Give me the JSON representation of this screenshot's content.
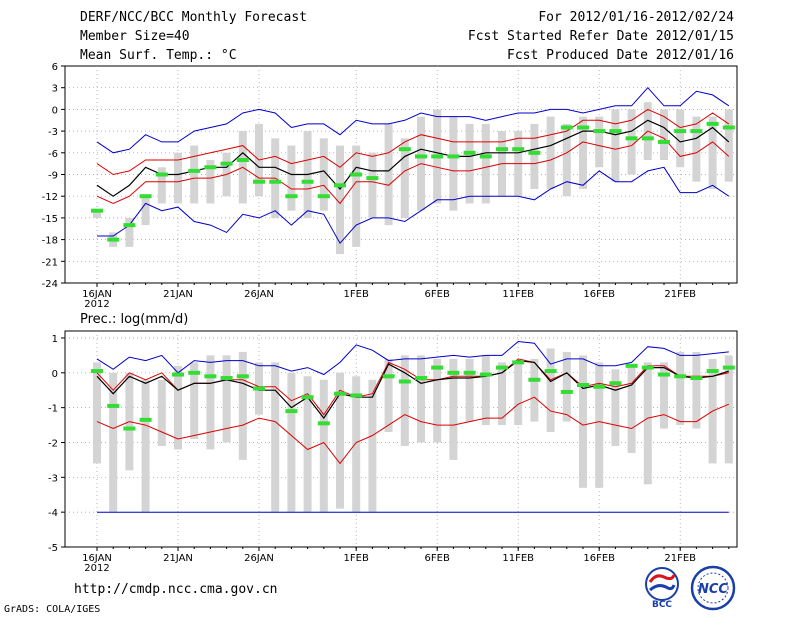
{
  "header": {
    "title": "DERF/NCC/BCC Monthly Forecast",
    "member_size": "Member Size=40",
    "variable": "Mean Surf. Temp.: °C",
    "forecast_period": "For 2012/01/16-2012/02/24",
    "started_refer_date": "Fcst Started Refer Date 2012/01/15",
    "produced_date": "Fcst Produced Date 2012/01/16"
  },
  "footer": {
    "url": "http://cmdp.ncc.cma.gov.cn",
    "grads_credit": "GrADS: COLA/IGES",
    "logo_bcc": "BCC",
    "logo_ncc": "NCC"
  },
  "colors": {
    "max_line": "#0000cc",
    "p90_line": "#dd0000",
    "mean_line": "#000000",
    "bar": "#d4d4d4",
    "obs": "#33dd33",
    "grid": "#999999"
  },
  "chart_data": [
    {
      "type": "line",
      "id": "temperature",
      "title": "",
      "ylabel": "°C",
      "ylim": [
        -24,
        6
      ],
      "yticks": [
        6,
        3,
        0,
        -3,
        -6,
        -9,
        -12,
        -15,
        -18,
        -21,
        -24
      ],
      "x_tick_labels": [
        {
          "day": 0,
          "label": "16JAN"
        },
        {
          "day": 5,
          "label": "21JAN"
        },
        {
          "day": 10,
          "label": "26JAN"
        },
        {
          "day": 16,
          "label": "1FEB"
        },
        {
          "day": 21,
          "label": "6FEB"
        },
        {
          "day": 26,
          "label": "11FEB"
        },
        {
          "day": 31,
          "label": "16FEB"
        },
        {
          "day": 36,
          "label": "21FEB"
        }
      ],
      "year_label": "2012",
      "days": 40,
      "bar_top": [
        -14,
        -17,
        -15,
        -12,
        -8,
        -6,
        -5,
        -7,
        -6,
        -3,
        -2,
        -4,
        -5,
        -3,
        -4,
        -5,
        -5,
        -6,
        -2,
        -4,
        -1,
        0,
        -1,
        -2,
        -2,
        -3,
        -3,
        -2,
        -1,
        -2,
        -1,
        -1,
        0,
        0,
        1,
        0,
        0,
        -1,
        -1,
        0
      ],
      "bar_bottom": [
        -15,
        -19,
        -19,
        -16,
        -13,
        -13,
        -13,
        -13,
        -12,
        -13,
        -12,
        -15,
        -14,
        -15,
        -14,
        -20,
        -19,
        -15,
        -16,
        -15,
        -14,
        -13,
        -14,
        -13,
        -13,
        -12,
        -12,
        -11,
        -11,
        -12,
        -11,
        -8,
        -10,
        -9,
        -7,
        -7,
        -8,
        -10,
        -11,
        -10
      ],
      "observed": [
        -14,
        -18,
        -16,
        -12,
        -9,
        null,
        -8.5,
        -8,
        -7.5,
        -7,
        -10,
        -10,
        -12,
        -10,
        -12,
        -10.5,
        -9,
        -9.5,
        null,
        -5.5,
        -6.5,
        -6.5,
        -6.5,
        -6,
        -6.5,
        -5.5,
        -5.5,
        -6,
        null,
        -2.5,
        -2.5,
        -3,
        -3,
        -4,
        -4,
        -4.5,
        -3,
        -3,
        -2,
        -2.5
      ],
      "series": [
        {
          "name": "max",
          "color": "#0000cc",
          "values": [
            -4.5,
            -6,
            -5.5,
            -3.5,
            -4.5,
            -4.5,
            -3,
            -2.5,
            -2,
            -0.5,
            0,
            -0.5,
            -2.5,
            -2,
            -2,
            -3.5,
            -1.5,
            -2,
            -2,
            -1.5,
            -0.5,
            -1,
            -1,
            -1,
            -1.5,
            -1,
            -0.5,
            -0.5,
            0,
            0,
            -0.5,
            0,
            0.5,
            0.5,
            3,
            0.5,
            0.5,
            2.5,
            2,
            0.5
          ]
        },
        {
          "name": "p90",
          "color": "#dd0000",
          "values": [
            -7.5,
            -9,
            -8.5,
            -7,
            -7,
            -7,
            -6.5,
            -6,
            -5.5,
            -5,
            -7,
            -6.5,
            -7.5,
            -7,
            -6.5,
            -8,
            -6,
            -6.5,
            -6,
            -4.5,
            -3.5,
            -4,
            -4.5,
            -4.5,
            -4.5,
            -4.5,
            -4,
            -4,
            -3.5,
            -3,
            -1.5,
            -1.5,
            -2,
            -1.5,
            0,
            -1,
            -2.5,
            -2,
            -0.5,
            -2
          ]
        },
        {
          "name": "mean",
          "color": "#000000",
          "values": [
            -10.5,
            -12,
            -10.5,
            -8,
            -9,
            -9,
            -8.5,
            -8,
            -8,
            -6,
            -8,
            -8,
            -9,
            -9,
            -8.5,
            -11,
            -8,
            -8.5,
            -8.5,
            -6.5,
            -5.5,
            -6,
            -6.5,
            -6.5,
            -6,
            -6,
            -6,
            -5.5,
            -5,
            -4,
            -3,
            -3,
            -3.5,
            -3,
            -1.5,
            -2.5,
            -4.5,
            -4,
            -2.5,
            -4.5
          ]
        },
        {
          "name": "p10",
          "color": "#dd0000",
          "values": [
            -12,
            -13,
            -12,
            -10,
            -10,
            -10,
            -9.5,
            -9.5,
            -9,
            -8,
            -9.5,
            -9.5,
            -11,
            -11,
            -10.5,
            -13,
            -10,
            -10,
            -10.5,
            -8.5,
            -7.5,
            -8,
            -8.5,
            -8.5,
            -8,
            -7.5,
            -7.5,
            -7.5,
            -7,
            -6,
            -4.5,
            -5,
            -5.5,
            -5,
            -3,
            -4,
            -6.5,
            -6,
            -4.5,
            -6.5
          ]
        },
        {
          "name": "min",
          "color": "#0000cc",
          "values": [
            -17.5,
            -17.5,
            -16,
            -13,
            -14,
            -13.5,
            -15.5,
            -16,
            -17,
            -14.5,
            -15,
            -14,
            -16,
            -14,
            -14.5,
            -18.5,
            -16,
            -15,
            -15,
            -15.5,
            -14,
            -12.5,
            -12.5,
            -12,
            -12,
            -12,
            -12,
            -12.5,
            -11,
            -10,
            -10.5,
            -8.5,
            -10,
            -10,
            -8.5,
            -8,
            -11.5,
            -11.5,
            -10.5,
            -12
          ]
        }
      ]
    },
    {
      "type": "line",
      "id": "precipitation",
      "title": "Prec.: log(mm/d)",
      "ylabel": "log(mm/d)",
      "ylim": [
        -5,
        1.2
      ],
      "yticks": [
        1,
        0,
        -1,
        -2,
        -3,
        -4,
        -5
      ],
      "x_tick_labels": [
        {
          "day": 0,
          "label": "16JAN"
        },
        {
          "day": 5,
          "label": "21JAN"
        },
        {
          "day": 10,
          "label": "26JAN"
        },
        {
          "day": 16,
          "label": "1FEB"
        },
        {
          "day": 21,
          "label": "6FEB"
        },
        {
          "day": 26,
          "label": "11FEB"
        },
        {
          "day": 31,
          "label": "16FEB"
        },
        {
          "day": 36,
          "label": "21FEB"
        }
      ],
      "year_label": "2012",
      "days": 40,
      "floor_value": -4,
      "bar_top": [
        0.3,
        0,
        0,
        -0.2,
        -0.2,
        0.2,
        0.3,
        0.5,
        0.5,
        0.6,
        0.3,
        0.3,
        0,
        -0.1,
        -0.2,
        0,
        -0.1,
        -0.2,
        0.4,
        0.5,
        0.5,
        0.4,
        0.4,
        0.4,
        0.5,
        0.3,
        0.3,
        0.4,
        0.7,
        0.6,
        0.5,
        0.3,
        0.1,
        0.2,
        0.3,
        0.3,
        0.6,
        0.6,
        0.4,
        0.5
      ],
      "bar_bottom": [
        -2.6,
        -4,
        -2.8,
        -4,
        -2.1,
        -2.2,
        -1.9,
        -2.2,
        -2,
        -2.5,
        -1.2,
        -4,
        -4,
        -4,
        -4,
        -3.9,
        -4,
        -4,
        -1.7,
        -2.1,
        -2,
        -2,
        -2.5,
        -1.4,
        -1.5,
        -1.5,
        -1.5,
        -1.4,
        -1.7,
        -1.4,
        -3.3,
        -3.3,
        -2.1,
        -2.3,
        -3.2,
        -1.6,
        -1.5,
        -1.6,
        -2.6,
        -2.6
      ],
      "observed": [
        0.05,
        -0.95,
        -1.6,
        -1.35,
        null,
        -0.05,
        0,
        -0.1,
        -0.15,
        -0.1,
        -0.45,
        null,
        -1.1,
        -0.7,
        -1.45,
        -0.6,
        -0.65,
        null,
        -0.1,
        -0.25,
        -0.15,
        0.15,
        0,
        0,
        -0.05,
        0.15,
        0.3,
        -0.2,
        0.05,
        -0.55,
        -0.35,
        -0.4,
        -0.3,
        0.2,
        0.15,
        -0.05,
        -0.1,
        -0.15,
        0.05,
        0.15
      ],
      "series": [
        {
          "name": "max",
          "color": "#0000cc",
          "values": [
            0.4,
            0.1,
            0.45,
            0.35,
            0.5,
            0,
            0.35,
            0.3,
            0.35,
            0.35,
            0.2,
            0.2,
            0.05,
            0.15,
            -0.05,
            0.3,
            0.8,
            0.65,
            0.35,
            0.4,
            0.4,
            0.45,
            0.5,
            0.45,
            0.5,
            0.5,
            0.9,
            0.85,
            0.25,
            0.4,
            0.4,
            0.2,
            0.2,
            0.3,
            0.75,
            0.7,
            0.5,
            0.5,
            0.55,
            0.6
          ]
        },
        {
          "name": "p90",
          "color": "#dd0000",
          "values": [
            0,
            -0.5,
            0,
            -0.2,
            0,
            -0.5,
            -0.3,
            -0.3,
            -0.2,
            -0.2,
            -0.4,
            -0.4,
            -0.8,
            -0.6,
            -1.2,
            -0.5,
            -0.7,
            -0.6,
            0.3,
            0.1,
            -0.2,
            -0.2,
            -0.1,
            -0.1,
            -0.1,
            0,
            0.4,
            0.3,
            -0.2,
            0,
            -0.4,
            -0.3,
            -0.4,
            -0.3,
            0.2,
            0.2,
            -0.1,
            -0.1,
            -0.1,
            0
          ]
        },
        {
          "name": "mean",
          "color": "#000000",
          "values": [
            -0.1,
            -0.6,
            -0.1,
            -0.3,
            -0.1,
            -0.5,
            -0.3,
            -0.3,
            -0.2,
            -0.3,
            -0.5,
            -0.5,
            -1,
            -0.7,
            -1.3,
            -0.6,
            -0.7,
            -0.7,
            0.25,
            0,
            -0.3,
            -0.2,
            -0.15,
            -0.15,
            -0.1,
            0,
            0.35,
            0.3,
            -0.25,
            0,
            -0.45,
            -0.35,
            -0.5,
            -0.35,
            0.15,
            0.15,
            -0.1,
            -0.15,
            -0.1,
            0.05
          ]
        },
        {
          "name": "p10",
          "color": "#dd0000",
          "values": [
            -1.4,
            -1.6,
            -1.4,
            -1.5,
            -1.7,
            -1.9,
            -1.8,
            -1.7,
            -1.6,
            -1.5,
            -1.3,
            -1.4,
            -1.8,
            -2.2,
            -2,
            -2.6,
            -2,
            -1.8,
            -1.5,
            -1.2,
            -1.4,
            -1.5,
            -1.5,
            -1.4,
            -1.3,
            -1.3,
            -0.9,
            -0.7,
            -1.1,
            -1.2,
            -1.5,
            -1.4,
            -1.5,
            -1.6,
            -1.3,
            -1.2,
            -1.4,
            -1.4,
            -1.1,
            -0.9
          ]
        },
        {
          "name": "min",
          "color": "#0000cc",
          "values": [
            -4,
            -4,
            -4,
            -4,
            -4,
            -4,
            -4,
            -4,
            -4,
            -4,
            -4,
            -4,
            -4,
            -4,
            -4,
            -4,
            -4,
            -4,
            -4,
            -4,
            -4,
            -4,
            -4,
            -4,
            -4,
            -4,
            -4,
            -4,
            -4,
            -4,
            -4,
            -4,
            -4,
            -4,
            -4,
            -4,
            -4,
            -4,
            -4,
            -4
          ]
        }
      ]
    }
  ]
}
